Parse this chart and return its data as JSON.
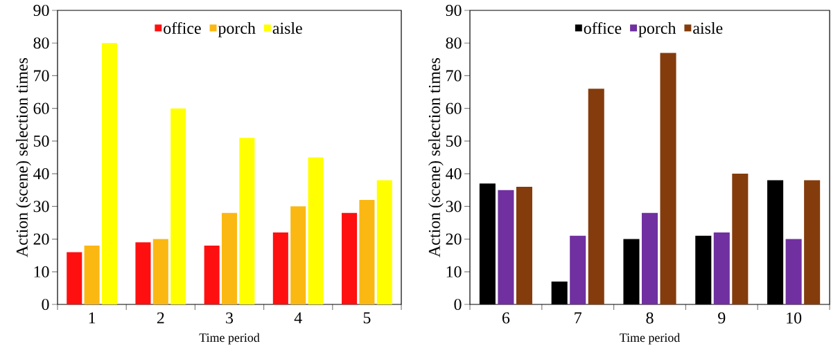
{
  "chart_data": [
    {
      "type": "bar",
      "xlabel": "Time period",
      "ylabel": "Action (scene) selection times",
      "categories": [
        "1",
        "2",
        "3",
        "4",
        "5"
      ],
      "ylim": [
        0,
        90
      ],
      "yticks": [
        0,
        10,
        20,
        30,
        40,
        50,
        60,
        70,
        80,
        90
      ],
      "legend": "top",
      "grid": false,
      "series": [
        {
          "name": "office",
          "color": "#ff1010",
          "values": [
            16,
            19,
            18,
            22,
            28
          ]
        },
        {
          "name": "porch",
          "color": "#fbb812",
          "values": [
            18,
            20,
            28,
            30,
            32
          ]
        },
        {
          "name": "aisle",
          "color": "#ffff00",
          "values": [
            80,
            60,
            51,
            45,
            38
          ]
        }
      ]
    },
    {
      "type": "bar",
      "xlabel": "Time period",
      "ylabel": "Action (scene) selection times",
      "categories": [
        "6",
        "7",
        "8",
        "9",
        "10"
      ],
      "ylim": [
        0,
        90
      ],
      "yticks": [
        0,
        10,
        20,
        30,
        40,
        50,
        60,
        70,
        80,
        90
      ],
      "legend": "top",
      "grid": false,
      "series": [
        {
          "name": "office",
          "color": "#000000",
          "values": [
            37,
            7,
            20,
            21,
            38
          ]
        },
        {
          "name": "porch",
          "color": "#7030a0",
          "values": [
            35,
            21,
            28,
            22,
            20
          ]
        },
        {
          "name": "aisle",
          "color": "#843c0c",
          "values": [
            36,
            66,
            77,
            40,
            38
          ]
        }
      ]
    }
  ]
}
